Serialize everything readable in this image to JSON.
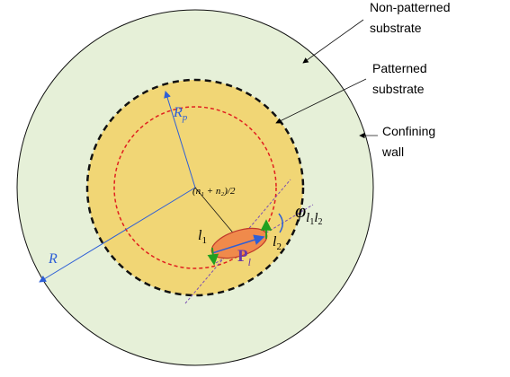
{
  "labels": {
    "non_patterned_line1": "Non-patterned",
    "non_patterned_line2": "substrate",
    "patterned_line1": "Patterned",
    "patterned_line2": "substrate",
    "confining_line1": "Confining",
    "confining_line2": "wall",
    "R": "R",
    "Rp_main": "R",
    "Rp_sub": "p",
    "center_expr": "(n₁ + n₂)/2",
    "l1_main": "l",
    "l1_sub": "1",
    "l2_main": "l",
    "l2_sub": "2",
    "P_main": "P",
    "P_sub": "l",
    "phi_main": "φ",
    "phi_sub1": "l",
    "phi_sub1_idx": "1",
    "phi_sub2": "l",
    "phi_sub2_idx": "2"
  },
  "colors": {
    "outer_fill": "#e6f0d8",
    "patterned_fill": "#f1d675",
    "red_dashed": "#e02020",
    "particle_fill": "#f08a4b",
    "particle_stroke": "#c0392b",
    "blue": "#2e5fd6",
    "purple_dashed": "#7b4fb3",
    "green": "#20a020",
    "P_color": "#6a3aa8"
  }
}
